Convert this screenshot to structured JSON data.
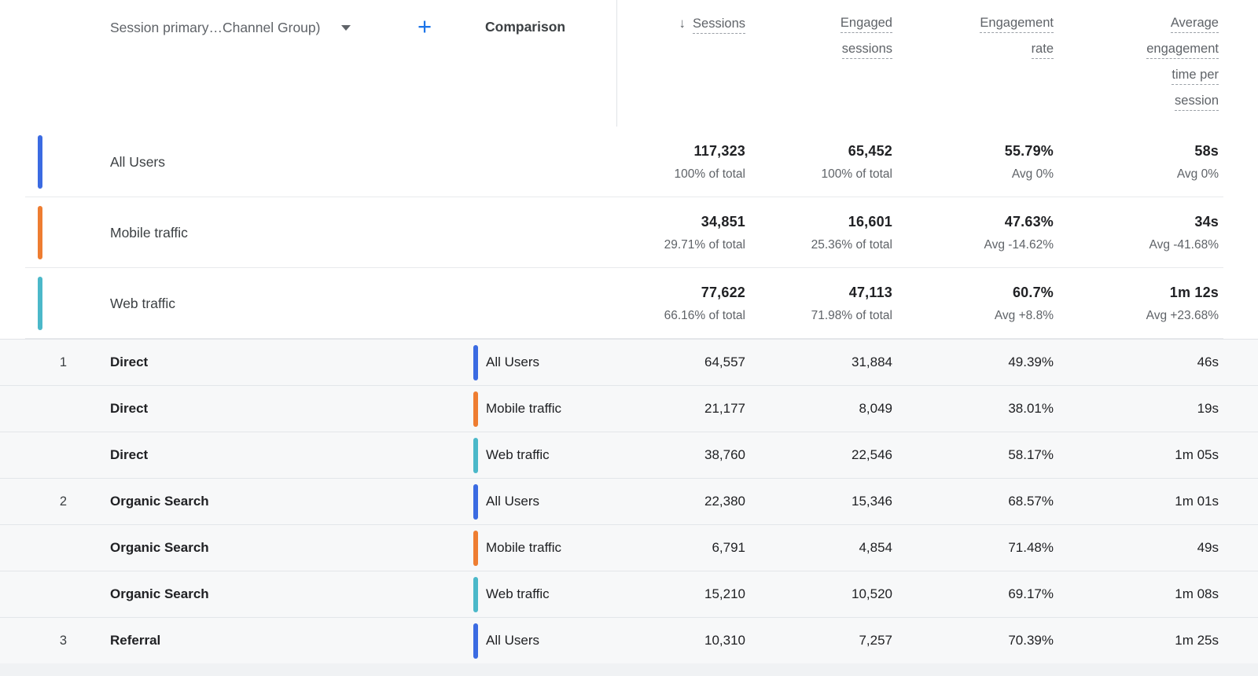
{
  "header": {
    "dimension_selector_label": "Session primary…Channel Group)",
    "add_button_glyph": "+",
    "comparison_label": "Comparison",
    "sort_icon": "↓",
    "columns": [
      {
        "key": "sessions",
        "lines": [
          "Sessions"
        ],
        "sorted": "descending"
      },
      {
        "key": "engaged_sessions",
        "lines": [
          "Engaged",
          "sessions"
        ]
      },
      {
        "key": "engagement_rate",
        "lines": [
          "Engagement",
          "rate"
        ]
      },
      {
        "key": "avg_engagement_time",
        "lines": [
          "Average",
          "engagement",
          "time per",
          "session"
        ]
      }
    ]
  },
  "colors": {
    "accent_blue": "#1a73e8",
    "comparison_all_users": "#3b6be2",
    "comparison_mobile": "#ee7d31",
    "comparison_web": "#4bb8c9",
    "data_row_bg": "#f7f8f9"
  },
  "summary_rows": [
    {
      "label": "All Users",
      "color": "#3b6be2",
      "sessions": "117,323",
      "sessions_sub": "100% of total",
      "engaged": "65,452",
      "engaged_sub": "100% of total",
      "rate": "55.79%",
      "rate_sub": "Avg 0%",
      "avg_time": "58s",
      "avg_time_sub": "Avg 0%"
    },
    {
      "label": "Mobile traffic",
      "color": "#ee7d31",
      "sessions": "34,851",
      "sessions_sub": "29.71% of total",
      "engaged": "16,601",
      "engaged_sub": "25.36% of total",
      "rate": "47.63%",
      "rate_sub": "Avg -14.62%",
      "avg_time": "34s",
      "avg_time_sub": "Avg -41.68%"
    },
    {
      "label": "Web traffic",
      "color": "#4bb8c9",
      "sessions": "77,622",
      "sessions_sub": "66.16% of total",
      "engaged": "47,113",
      "engaged_sub": "71.98% of total",
      "rate": "60.7%",
      "rate_sub": "Avg +8.8%",
      "avg_time": "1m 12s",
      "avg_time_sub": "Avg +23.68%"
    }
  ],
  "rows": [
    {
      "index": "1",
      "dimension": "Direct",
      "comparison": "All Users",
      "color": "#3b6be2",
      "sessions": "64,557",
      "engaged": "31,884",
      "rate": "49.39%",
      "avg_time": "46s"
    },
    {
      "index": "",
      "dimension": "Direct",
      "comparison": "Mobile traffic",
      "color": "#ee7d31",
      "sessions": "21,177",
      "engaged": "8,049",
      "rate": "38.01%",
      "avg_time": "19s"
    },
    {
      "index": "",
      "dimension": "Direct",
      "comparison": "Web traffic",
      "color": "#4bb8c9",
      "sessions": "38,760",
      "engaged": "22,546",
      "rate": "58.17%",
      "avg_time": "1m 05s"
    },
    {
      "index": "2",
      "dimension": "Organic Search",
      "comparison": "All Users",
      "color": "#3b6be2",
      "sessions": "22,380",
      "engaged": "15,346",
      "rate": "68.57%",
      "avg_time": "1m 01s"
    },
    {
      "index": "",
      "dimension": "Organic Search",
      "comparison": "Mobile traffic",
      "color": "#ee7d31",
      "sessions": "6,791",
      "engaged": "4,854",
      "rate": "71.48%",
      "avg_time": "49s"
    },
    {
      "index": "",
      "dimension": "Organic Search",
      "comparison": "Web traffic",
      "color": "#4bb8c9",
      "sessions": "15,210",
      "engaged": "10,520",
      "rate": "69.17%",
      "avg_time": "1m 08s"
    },
    {
      "index": "3",
      "dimension": "Referral",
      "comparison": "All Users",
      "color": "#3b6be2",
      "sessions": "10,310",
      "engaged": "7,257",
      "rate": "70.39%",
      "avg_time": "1m 25s"
    }
  ]
}
